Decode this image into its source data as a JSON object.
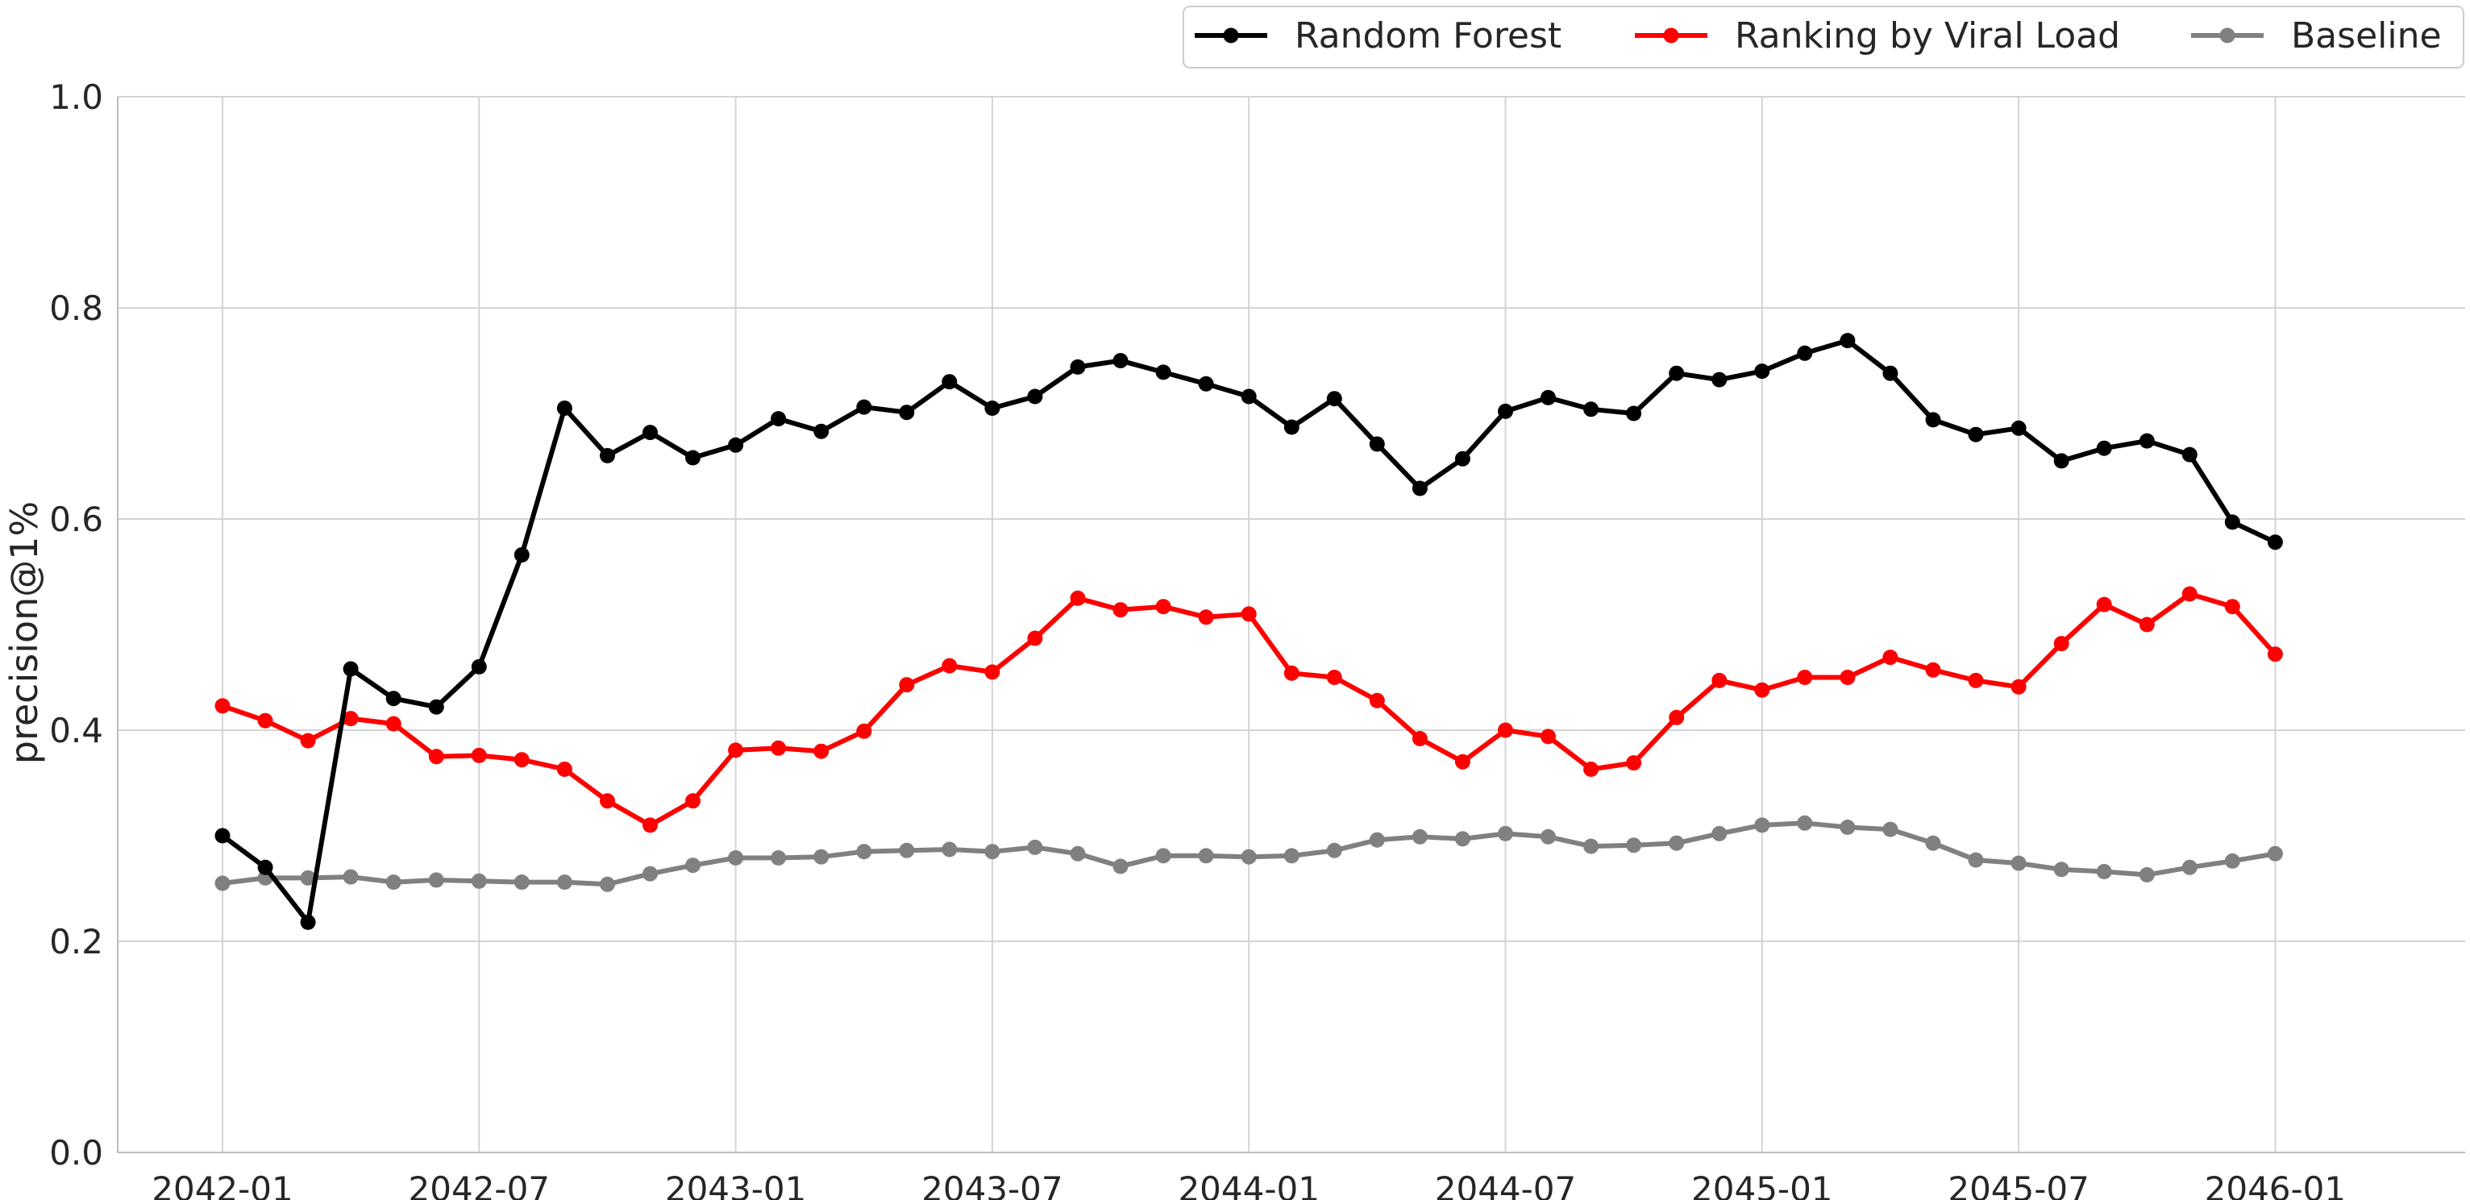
{
  "chart_data": {
    "type": "line",
    "title": "",
    "xlabel": "",
    "ylabel": "precision@1%",
    "ylim": [
      0,
      1.0
    ],
    "yticks": [
      "0.0",
      "0.2",
      "0.4",
      "0.6",
      "0.8",
      "1.0"
    ],
    "xticks": [
      "2042-01",
      "2042-07",
      "2043-01",
      "2043-07",
      "2044-01",
      "2044-07",
      "2045-01",
      "2045-07",
      "2046-01"
    ],
    "grid": true,
    "legend_position": "top-right",
    "x": [
      "2042-01",
      "2042-02",
      "2042-03",
      "2042-04",
      "2042-05",
      "2042-06",
      "2042-07",
      "2042-08",
      "2042-09",
      "2042-10",
      "2042-11",
      "2042-12",
      "2043-01",
      "2043-02",
      "2043-03",
      "2043-04",
      "2043-05",
      "2043-06",
      "2043-07",
      "2043-08",
      "2043-09",
      "2043-10",
      "2043-11",
      "2043-12",
      "2044-01",
      "2044-02",
      "2044-03",
      "2044-04",
      "2044-05",
      "2044-06",
      "2044-07",
      "2044-08",
      "2044-09",
      "2044-10",
      "2044-11",
      "2044-12",
      "2045-01",
      "2045-02",
      "2045-03",
      "2045-04",
      "2045-05",
      "2045-06",
      "2045-07",
      "2045-08",
      "2045-09",
      "2045-10",
      "2045-11",
      "2045-12",
      "2046-01"
    ],
    "series": [
      {
        "name": "Random Forest",
        "color": "#000000",
        "values": [
          0.3,
          0.27,
          0.218,
          0.458,
          0.43,
          0.422,
          0.46,
          0.566,
          0.705,
          0.66,
          0.682,
          0.658,
          0.67,
          0.695,
          0.683,
          0.706,
          0.701,
          0.73,
          0.705,
          0.716,
          0.744,
          0.75,
          0.739,
          0.728,
          0.716,
          0.687,
          0.714,
          0.671,
          0.629,
          0.657,
          0.702,
          0.715,
          0.704,
          0.7,
          0.738,
          0.732,
          0.74,
          0.757,
          0.769,
          0.738,
          0.694,
          0.68,
          0.686,
          0.655,
          0.667,
          0.674,
          0.661,
          0.597,
          0.578
        ]
      },
      {
        "name": "Ranking by Viral Load",
        "color": "#ff0000",
        "values": [
          0.423,
          0.409,
          0.39,
          0.411,
          0.406,
          0.375,
          0.376,
          0.372,
          0.363,
          0.333,
          0.31,
          0.333,
          0.381,
          0.383,
          0.38,
          0.399,
          0.443,
          0.461,
          0.455,
          0.487,
          0.525,
          0.514,
          0.517,
          0.507,
          0.51,
          0.454,
          0.45,
          0.428,
          0.392,
          0.37,
          0.4,
          0.394,
          0.363,
          0.369,
          0.412,
          0.447,
          0.438,
          0.45,
          0.45,
          0.469,
          0.457,
          0.447,
          0.441,
          0.482,
          0.519,
          0.5,
          0.529,
          0.517,
          0.472
        ]
      },
      {
        "name": "Baseline",
        "color": "#808080",
        "values": [
          0.255,
          0.26,
          0.26,
          0.261,
          0.256,
          0.258,
          0.257,
          0.256,
          0.256,
          0.254,
          0.264,
          0.272,
          0.279,
          0.279,
          0.28,
          0.285,
          0.286,
          0.287,
          0.285,
          0.289,
          0.283,
          0.271,
          0.281,
          0.281,
          0.28,
          0.281,
          0.286,
          0.296,
          0.299,
          0.297,
          0.302,
          0.299,
          0.29,
          0.291,
          0.293,
          0.302,
          0.31,
          0.312,
          0.308,
          0.306,
          0.293,
          0.277,
          0.274,
          0.268,
          0.266,
          0.263,
          0.27,
          0.276,
          0.283
        ]
      }
    ]
  }
}
